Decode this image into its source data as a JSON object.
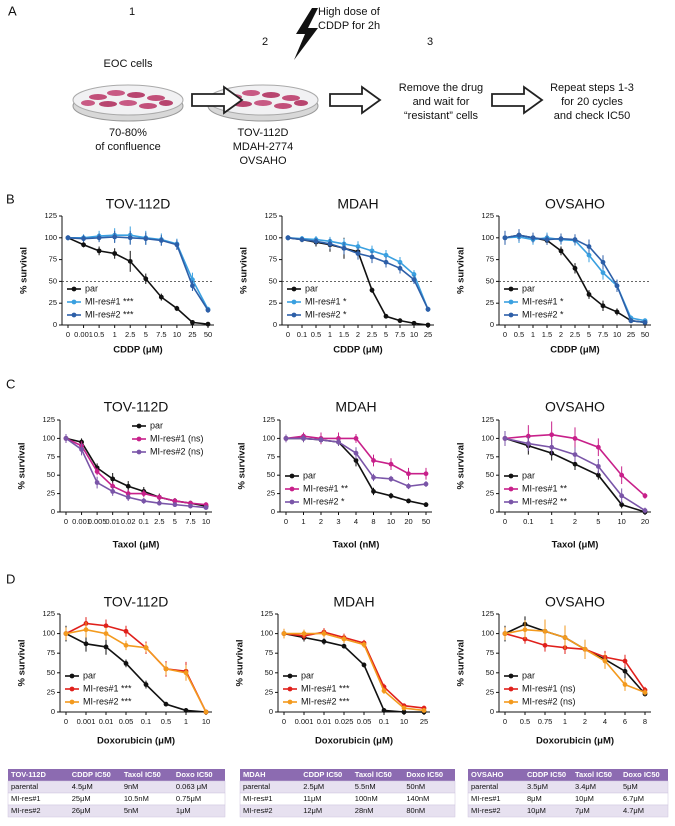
{
  "panel_labels": [
    "A",
    "B",
    "C",
    "D"
  ],
  "panel_a": {
    "steps": [
      "1",
      "2",
      "3"
    ],
    "dish1_title": "EOC cells",
    "dish1_caption": [
      "70-80%",
      "of confluence"
    ],
    "treatment": [
      "High dose of",
      "CDDP for 2h"
    ],
    "cell_lines": [
      "TOV-112D",
      "MDAH-2774",
      "OVSAHO"
    ],
    "step3": [
      "Remove the drug",
      "and wait for",
      "“resistant” cells"
    ],
    "step4": [
      "Repeat steps 1-3",
      "for 20 cycles",
      "and check IC50"
    ]
  },
  "chart_data": [
    {
      "type": "line",
      "title": "TOV-112D",
      "x_label": "CDDP (μM)",
      "y_label": "% survival",
      "categories": [
        "0",
        "0.001",
        "0.5",
        "1",
        "2.5",
        "5",
        "7.5",
        "10",
        "25",
        "50"
      ],
      "ylim": [
        0,
        125
      ],
      "yticks": [
        0,
        25,
        50,
        75,
        100,
        125
      ],
      "hline": 50,
      "legend": "lower left",
      "series": [
        {
          "name": "par",
          "color": "#111111",
          "values": [
            100,
            92,
            85,
            82,
            73,
            53,
            32,
            19,
            3,
            1
          ],
          "errors": [
            3,
            3,
            5,
            6,
            12,
            6,
            4,
            3,
            2,
            1
          ]
        },
        {
          "name": "MI-res#1 ***",
          "color": "#3aa0e0",
          "values": [
            100,
            100,
            102,
            103,
            103,
            100,
            98,
            93,
            52,
            18
          ],
          "errors": [
            3,
            4,
            6,
            8,
            10,
            8,
            7,
            6,
            8,
            3
          ]
        },
        {
          "name": "MI-res#2 ***",
          "color": "#2d5fa8",
          "values": [
            100,
            99,
            100,
            101,
            100,
            99,
            97,
            92,
            45,
            17
          ],
          "errors": [
            3,
            4,
            5,
            7,
            8,
            7,
            6,
            6,
            6,
            3
          ]
        }
      ]
    },
    {
      "type": "line",
      "title": "MDAH",
      "x_label": "CDDP (μM)",
      "y_label": "% survival",
      "categories": [
        "0",
        "0.1",
        "0.5",
        "1",
        "1.5",
        "2",
        "2.5",
        "5",
        "7.5",
        "10",
        "25"
      ],
      "ylim": [
        0,
        125
      ],
      "yticks": [
        0,
        25,
        50,
        75,
        100,
        125
      ],
      "hline": 50,
      "legend": "lower left",
      "series": [
        {
          "name": "par",
          "color": "#111111",
          "values": [
            100,
            98,
            95,
            92,
            88,
            84,
            40,
            10,
            5,
            2,
            0
          ],
          "errors": [
            3,
            3,
            5,
            8,
            12,
            6,
            3,
            2,
            1,
            1,
            1
          ]
        },
        {
          "name": "MI-res#1 *",
          "color": "#3aa0e0",
          "values": [
            100,
            99,
            98,
            96,
            93,
            90,
            85,
            80,
            72,
            58,
            18
          ],
          "errors": [
            3,
            3,
            4,
            5,
            6,
            6,
            6,
            6,
            6,
            5,
            3
          ]
        },
        {
          "name": "MI-res#2 *",
          "color": "#2d5fa8",
          "values": [
            100,
            98,
            96,
            93,
            88,
            82,
            78,
            72,
            65,
            52,
            18
          ],
          "errors": [
            3,
            3,
            4,
            6,
            7,
            7,
            7,
            6,
            6,
            5,
            3
          ]
        }
      ]
    },
    {
      "type": "line",
      "title": "OVSAHO",
      "x_label": "CDDP (μM)",
      "y_label": "% survival",
      "categories": [
        "0",
        "0.5",
        "1",
        "1.5",
        "2",
        "2.5",
        "5",
        "7.5",
        "10",
        "25",
        "50"
      ],
      "ylim": [
        0,
        125
      ],
      "yticks": [
        0,
        25,
        50,
        75,
        100,
        125
      ],
      "hline": 50,
      "legend": "lower left",
      "series": [
        {
          "name": "par",
          "color": "#111111",
          "values": [
            100,
            103,
            100,
            97,
            85,
            65,
            35,
            22,
            15,
            5,
            3
          ],
          "errors": [
            5,
            5,
            4,
            5,
            5,
            6,
            5,
            6,
            4,
            2,
            1
          ]
        },
        {
          "name": "MI-res#1 *",
          "color": "#3aa0e0",
          "values": [
            100,
            101,
            98,
            100,
            98,
            97,
            80,
            60,
            45,
            8,
            5
          ],
          "errors": [
            8,
            7,
            6,
            6,
            6,
            6,
            8,
            8,
            7,
            3,
            2
          ]
        },
        {
          "name": "MI-res#2 *",
          "color": "#2d5fa8",
          "values": [
            100,
            103,
            100,
            98,
            99,
            98,
            90,
            72,
            45,
            5,
            3
          ],
          "errors": [
            8,
            7,
            6,
            6,
            6,
            6,
            8,
            8,
            7,
            3,
            2
          ]
        }
      ]
    },
    {
      "type": "line",
      "title": "TOV-112D",
      "x_label": "Taxol (μM)",
      "y_label": "% survival",
      "categories": [
        "0",
        "0.001",
        "0.005",
        "0.01",
        "0.02",
        "0.1",
        "2.5",
        "5",
        "7.5",
        "10"
      ],
      "ylim": [
        0,
        125
      ],
      "yticks": [
        0,
        25,
        50,
        75,
        100,
        125
      ],
      "legend": "upper right",
      "series": [
        {
          "name": "par",
          "color": "#111111",
          "values": [
            100,
            95,
            60,
            45,
            35,
            28,
            20,
            15,
            12,
            8
          ],
          "errors": [
            5,
            5,
            6,
            8,
            7,
            6,
            5,
            4,
            3,
            3
          ]
        },
        {
          "name": "MI-res#1 (ns)",
          "color": "#c8208a",
          "values": [
            100,
            90,
            55,
            35,
            25,
            25,
            20,
            15,
            12,
            10
          ],
          "errors": [
            6,
            6,
            5,
            5,
            5,
            5,
            4,
            4,
            3,
            3
          ]
        },
        {
          "name": "MI-res#2 (ns)",
          "color": "#7a55a8",
          "values": [
            100,
            85,
            40,
            28,
            20,
            15,
            12,
            10,
            8,
            6
          ],
          "errors": [
            6,
            8,
            8,
            6,
            5,
            4,
            3,
            3,
            3,
            2
          ]
        }
      ]
    },
    {
      "type": "line",
      "title": "MDAH",
      "x_label": "Taxol (nM)",
      "y_label": "% survival",
      "categories": [
        "0",
        "1",
        "2",
        "3",
        "4",
        "8",
        "10",
        "20",
        "50"
      ],
      "ylim": [
        0,
        125
      ],
      "yticks": [
        0,
        25,
        50,
        75,
        100,
        125
      ],
      "legend": "lower left",
      "series": [
        {
          "name": "par",
          "color": "#111111",
          "values": [
            100,
            100,
            98,
            95,
            70,
            28,
            22,
            15,
            10
          ],
          "errors": [
            5,
            5,
            4,
            5,
            8,
            5,
            4,
            3,
            3
          ]
        },
        {
          "name": "MI-res#1 **",
          "color": "#c8208a",
          "values": [
            100,
            103,
            100,
            100,
            100,
            70,
            65,
            52,
            52
          ],
          "errors": [
            5,
            5,
            8,
            8,
            6,
            8,
            8,
            8,
            8
          ]
        },
        {
          "name": "MI-res#2 *",
          "color": "#7a55a8",
          "values": [
            100,
            100,
            98,
            95,
            80,
            47,
            45,
            35,
            38
          ],
          "errors": [
            5,
            5,
            4,
            5,
            8,
            5,
            4,
            4,
            4
          ]
        }
      ]
    },
    {
      "type": "line",
      "title": "OVSAHO",
      "x_label": "Taxol (μM)",
      "y_label": "% survival",
      "categories": [
        "0",
        "0.1",
        "1",
        "2",
        "5",
        "10",
        "20"
      ],
      "ylim": [
        0,
        125
      ],
      "yticks": [
        0,
        25,
        50,
        75,
        100,
        125
      ],
      "legend": "lower left",
      "series": [
        {
          "name": "par",
          "color": "#111111",
          "values": [
            100,
            90,
            80,
            65,
            50,
            10,
            0
          ],
          "errors": [
            10,
            12,
            10,
            8,
            6,
            5,
            3
          ]
        },
        {
          "name": "MI-res#1 **",
          "color": "#c8208a",
          "values": [
            100,
            103,
            105,
            100,
            88,
            50,
            22
          ],
          "errors": [
            10,
            15,
            18,
            15,
            12,
            12,
            4
          ]
        },
        {
          "name": "MI-res#2 **",
          "color": "#7a55a8",
          "values": [
            100,
            93,
            88,
            78,
            62,
            22,
            2
          ],
          "errors": [
            10,
            10,
            10,
            10,
            10,
            10,
            4
          ]
        }
      ]
    },
    {
      "type": "line",
      "title": "TOV-112D",
      "x_label": "Doxorubicin (μM)",
      "y_label": "% survival",
      "categories": [
        "0",
        "0.001",
        "0.01",
        "0.05",
        "0.1",
        "0.5",
        "1",
        "10"
      ],
      "ylim": [
        0,
        125
      ],
      "yticks": [
        0,
        25,
        50,
        75,
        100,
        125
      ],
      "legend": "lower left",
      "series": [
        {
          "name": "par",
          "color": "#111111",
          "values": [
            100,
            87,
            83,
            62,
            35,
            10,
            2,
            0
          ],
          "errors": [
            10,
            10,
            10,
            5,
            5,
            2,
            1,
            1
          ]
        },
        {
          "name": "MI-res#1 ***",
          "color": "#e0201b",
          "values": [
            100,
            113,
            110,
            103,
            82,
            55,
            52,
            0
          ],
          "errors": [
            8,
            8,
            8,
            7,
            8,
            10,
            12,
            2
          ]
        },
        {
          "name": "MI-res#2 ***",
          "color": "#f39a1e",
          "values": [
            100,
            105,
            100,
            85,
            82,
            55,
            50,
            0
          ],
          "errors": [
            8,
            10,
            8,
            6,
            6,
            8,
            10,
            2
          ]
        }
      ]
    },
    {
      "type": "line",
      "title": "MDAH",
      "x_label": "Doxorubicin (μM)",
      "y_label": "% survival",
      "categories": [
        "0",
        "0.001",
        "0.01",
        "0.025",
        "0.05",
        "0.1",
        "10",
        "25"
      ],
      "ylim": [
        0,
        125
      ],
      "yticks": [
        0,
        25,
        50,
        75,
        100,
        125
      ],
      "legend": "lower left",
      "series": [
        {
          "name": "par",
          "color": "#111111",
          "values": [
            100,
            95,
            90,
            84,
            60,
            2,
            0,
            0
          ],
          "errors": [
            5,
            5,
            4,
            3,
            3,
            1,
            1,
            1
          ]
        },
        {
          "name": "MI-res#1 ***",
          "color": "#e0201b",
          "values": [
            100,
            97,
            102,
            95,
            88,
            32,
            8,
            5
          ],
          "errors": [
            6,
            5,
            5,
            5,
            4,
            4,
            3,
            2
          ]
        },
        {
          "name": "MI-res#2 ***",
          "color": "#f39a1e",
          "values": [
            100,
            100,
            100,
            93,
            86,
            27,
            5,
            2
          ],
          "errors": [
            6,
            5,
            5,
            5,
            4,
            4,
            3,
            2
          ]
        }
      ]
    },
    {
      "type": "line",
      "title": "OVSAHO",
      "x_label": "Doxorubicin (μM)",
      "y_label": "% survival",
      "categories": [
        "0",
        "0.5",
        "0.75",
        "1",
        "2",
        "4",
        "6",
        "8"
      ],
      "ylim": [
        0,
        125
      ],
      "yticks": [
        0,
        25,
        50,
        75,
        100,
        125
      ],
      "legend": "lower left",
      "series": [
        {
          "name": "par",
          "color": "#111111",
          "values": [
            100,
            112,
            103,
            95,
            80,
            67,
            52,
            23
          ],
          "errors": [
            10,
            10,
            10,
            15,
            12,
            8,
            10,
            3
          ]
        },
        {
          "name": "MI-res#1 (ns)",
          "color": "#e0201b",
          "values": [
            100,
            93,
            85,
            82,
            80,
            70,
            65,
            28
          ],
          "errors": [
            8,
            6,
            8,
            8,
            8,
            8,
            8,
            4
          ]
        },
        {
          "name": "MI-res#2 (ns)",
          "color": "#f39a1e",
          "values": [
            100,
            105,
            103,
            95,
            80,
            65,
            35,
            25
          ],
          "errors": [
            8,
            12,
            15,
            15,
            12,
            10,
            8,
            4
          ]
        }
      ]
    }
  ],
  "tables": [
    {
      "header": [
        "TOV-112D",
        "CDDP IC50",
        "Taxol IC50",
        "Doxo IC50"
      ],
      "rows": [
        [
          "parental",
          "4.5μM",
          "9nM",
          "0.063 μM"
        ],
        [
          "MI-res#1",
          "25μM",
          "10.5nM",
          "0.75μM"
        ],
        [
          "MI-res#2",
          "26μM",
          "5nM",
          "1μM"
        ]
      ]
    },
    {
      "header": [
        "MDAH",
        "CDDP IC50",
        "Taxol IC50",
        "Doxo IC50"
      ],
      "rows": [
        [
          "parental",
          "2.5μM",
          "5.5nM",
          "50nM"
        ],
        [
          "MI-res#1",
          "11μM",
          "100nM",
          "140nM"
        ],
        [
          "MI-res#2",
          "12μM",
          "28nM",
          "80nM"
        ]
      ]
    },
    {
      "header": [
        "OVSAHO",
        "CDDP IC50",
        "Taxol IC50",
        "Doxo IC50"
      ],
      "rows": [
        [
          "parental",
          "3.5μM",
          "3.4μM",
          "5μM"
        ],
        [
          "MI-res#1",
          "8μM",
          "10μM",
          "6.7μM"
        ],
        [
          "MI-res#2",
          "10μM",
          "7μM",
          "4.7μM"
        ]
      ]
    }
  ]
}
